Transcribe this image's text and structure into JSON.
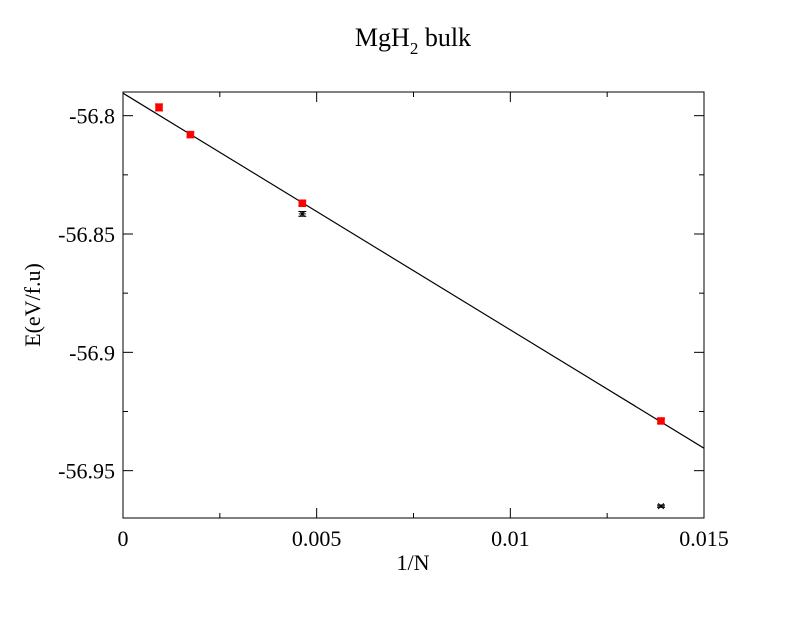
{
  "chart_data": {
    "type": "scatter",
    "title": "MgH",
    "title_subscript": "2",
    "title_suffix": " bulk",
    "xlabel": "1/N",
    "ylabel": "E(eV/f.u)",
    "xlim": [
      0,
      0.015
    ],
    "ylim": [
      -56.97,
      -56.79
    ],
    "x_ticks": [
      0,
      0.005,
      0.01,
      0.015
    ],
    "x_tick_labels": [
      "0",
      "0.005",
      "0.01",
      "0.015"
    ],
    "y_ticks": [
      -56.8,
      -56.85,
      -56.9,
      -56.95
    ],
    "y_tick_labels": [
      "-56.8",
      "-56.85",
      "-56.9",
      "-56.95"
    ],
    "grid": false,
    "legend": "none",
    "series": [
      {
        "color": "#ff0000",
        "marker": "square",
        "points": [
          {
            "x": 0.00093,
            "y": -56.7965,
            "err": 0.0015
          },
          {
            "x": 0.00174,
            "y": -56.808,
            "err": 0.001
          },
          {
            "x": 0.00463,
            "y": -56.837,
            "err": 0.001
          },
          {
            "x": 0.01389,
            "y": -56.929,
            "err": 0.001
          }
        ]
      },
      {
        "color": "#000000",
        "marker": "star",
        "points": [
          {
            "x": 0.00463,
            "y": -56.8415,
            "err": 0.001
          },
          {
            "x": 0.01389,
            "y": -56.965,
            "err": 0.0005
          }
        ]
      }
    ],
    "fit_line": {
      "color": "#000000",
      "x": [
        0,
        0.015
      ],
      "y": [
        -56.7905,
        -56.9405
      ]
    }
  }
}
